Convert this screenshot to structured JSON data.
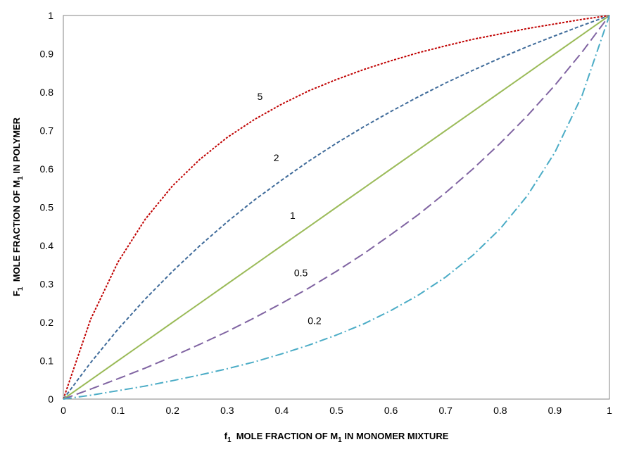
{
  "chart_data": {
    "type": "line",
    "xlabel": {
      "main": "f",
      "sub": "1",
      "text": "  MOLE FRACTION OF M",
      "sub2": "1",
      "tail": " IN MONOMER MIXTURE"
    },
    "ylabel": {
      "main": "F",
      "sub": "1",
      "text": "  MOLE FRACTION OF M",
      "sub2": "1",
      "tail": " IN POLYMER"
    },
    "xlim": [
      0,
      1
    ],
    "ylim": [
      0,
      1
    ],
    "x_ticks": [
      "0",
      "0.1",
      "0.2",
      "0.3",
      "0.4",
      "0.5",
      "0.6",
      "0.7",
      "0.8",
      "0.9",
      "1"
    ],
    "y_ticks": [
      "0",
      "0.1",
      "0.2",
      "0.3",
      "0.4",
      "0.5",
      "0.6",
      "0.7",
      "0.8",
      "0.9",
      "1"
    ],
    "x": [
      0,
      0.05,
      0.1,
      0.15,
      0.2,
      0.25,
      0.3,
      0.35,
      0.4,
      0.45,
      0.5,
      0.55,
      0.6,
      0.65,
      0.7,
      0.75,
      0.8,
      0.85,
      0.9,
      0.95,
      1
    ],
    "series": [
      {
        "label": "5",
        "color": "#c00000",
        "dash": "3,2",
        "label_x": 0.36,
        "label_y": 0.78,
        "values": [
          0,
          0.208,
          0.357,
          0.469,
          0.556,
          0.625,
          0.682,
          0.729,
          0.769,
          0.804,
          0.833,
          0.859,
          0.882,
          0.903,
          0.921,
          0.938,
          0.952,
          0.966,
          0.978,
          0.99,
          1
        ]
      },
      {
        "label": "2",
        "color": "#3f6b9a",
        "dash": "5,3",
        "label_x": 0.39,
        "label_y": 0.62,
        "values": [
          0,
          0.095,
          0.182,
          0.261,
          0.333,
          0.4,
          0.462,
          0.519,
          0.571,
          0.621,
          0.667,
          0.71,
          0.75,
          0.788,
          0.824,
          0.857,
          0.889,
          0.919,
          0.947,
          0.974,
          1
        ]
      },
      {
        "label": "1",
        "color": "#9bbb59",
        "dash": "",
        "label_x": 0.42,
        "label_y": 0.47,
        "values": [
          0,
          0.05,
          0.1,
          0.15,
          0.2,
          0.25,
          0.3,
          0.35,
          0.4,
          0.45,
          0.5,
          0.55,
          0.6,
          0.65,
          0.7,
          0.75,
          0.8,
          0.85,
          0.9,
          0.95,
          1
        ]
      },
      {
        "label": "0.5",
        "color": "#8064a2",
        "dash": "14,6",
        "label_x": 0.435,
        "label_y": 0.32,
        "values": [
          0,
          0.026,
          0.053,
          0.081,
          0.111,
          0.143,
          0.176,
          0.212,
          0.25,
          0.29,
          0.333,
          0.379,
          0.429,
          0.481,
          0.538,
          0.6,
          0.667,
          0.739,
          0.818,
          0.905,
          1
        ]
      },
      {
        "label": "0.2",
        "color": "#4bacc6",
        "dash": "12,4,2,4",
        "label_x": 0.46,
        "label_y": 0.195,
        "values": [
          0,
          0.01,
          0.022,
          0.034,
          0.048,
          0.063,
          0.079,
          0.097,
          0.118,
          0.141,
          0.167,
          0.196,
          0.231,
          0.271,
          0.318,
          0.375,
          0.444,
          0.531,
          0.643,
          0.792,
          1
        ]
      }
    ]
  }
}
